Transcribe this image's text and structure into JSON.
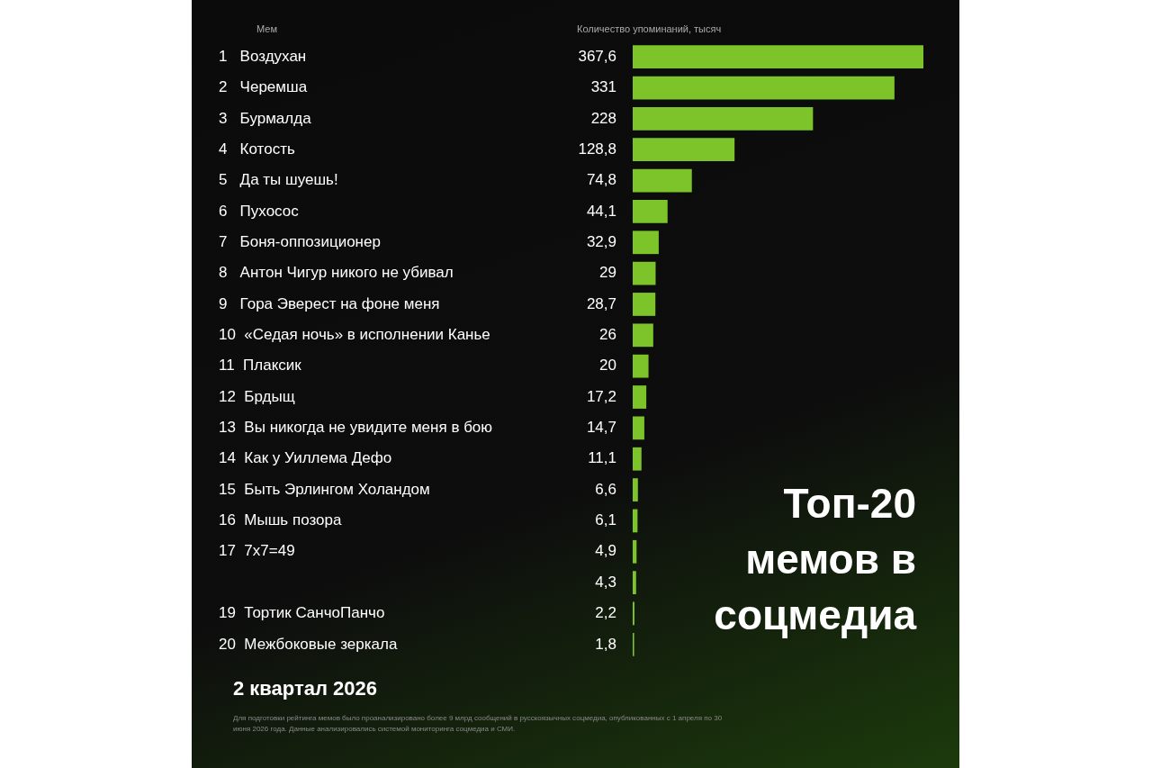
{
  "chart_data": {
    "type": "bar",
    "orientation": "horizontal",
    "title": "Топ-20 мемов в соцмедиа",
    "subtitle": "2 квартал 2026",
    "ylabel": "Мем",
    "xlabel": "Количество упоминаний, тысяч",
    "categories": [
      "1   Воздухан",
      "2   Черемша",
      "3   Бурмалда",
      "4   Котость",
      "5   Да ты шуешь!",
      "6   Пухосос",
      "7   Боня-оппозиционер",
      "8   Антон Чигур никого не убивал",
      "9   Гора Эверест на фоне меня",
      "10  «Седая ночь» в исполнении Канье",
      "11  Плаксик",
      "12  Брдыщ",
      "13  Вы никогда не увидите меня в бою",
      "14  Как у Уиллема Дефо",
      "15  Быть Эрлингом Холандом",
      "16  Мышь позора",
      "17  7x7=49",
      null,
      "19  Тортик СанчоПанчо",
      "20  Межбоковые зеркала"
    ],
    "values": [
      367.6,
      331,
      228,
      128.8,
      74.8,
      44.1,
      32.9,
      29,
      28.7,
      26,
      20,
      17.2,
      14.7,
      11.1,
      6.6,
      6.1,
      4.9,
      4.3,
      2.2,
      1.8
    ],
    "value_labels": [
      "367,6",
      "331",
      "228",
      "128,8",
      "74,8",
      "44,1",
      "32,9",
      "29",
      "28,7",
      "26",
      "20",
      "17,2",
      "14,7",
      "11,1",
      "6,6",
      "6,1",
      "4,9",
      "4,3",
      "2,2",
      "1,8"
    ],
    "color": "#7cc42a",
    "tick_labels": "y",
    "annotations": [
      "Для подготовки рейтинга мемов было проанализировано более 9 млрд сообщений в русскоязычных соцмедиа, опубликованных с 1 апреля по 30 июня 2026 года. Данные анализировались системой мониторинга соцмедиа и СМИ."
    ]
  }
}
